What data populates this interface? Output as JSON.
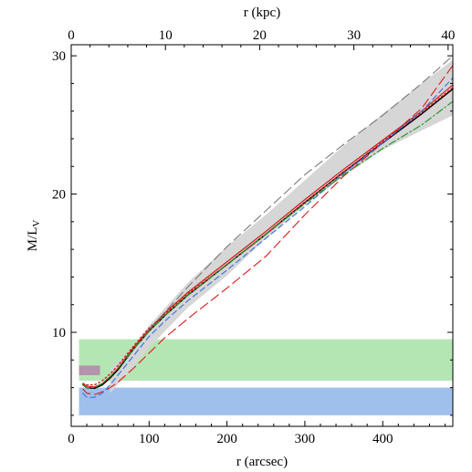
{
  "chart_data": {
    "type": "line",
    "xlabel": "r (arcsec)",
    "x2label": "r (kpc)",
    "ylabel_main": "M/L",
    "ylabel_sub": "V",
    "xlim": [
      0,
      490
    ],
    "x2lim": [
      0,
      40.5
    ],
    "ylim": [
      3.2,
      30.8
    ],
    "xticks": [
      0,
      100,
      200,
      300,
      400
    ],
    "x2ticks": [
      0,
      10,
      20,
      30,
      40
    ],
    "yticks": [
      10,
      20,
      30
    ],
    "grid": false,
    "colors": {
      "black": "#000000",
      "red": "#d91a1a",
      "blue": "#3a78e0",
      "green": "#2a9a2a",
      "gray": "#707070",
      "band": "#d6d6d6",
      "green_box": "#b4e6b4",
      "blue_box": "#a0c0ec",
      "mauve_box": "#b494aa"
    },
    "bands": [
      {
        "x": [
          10,
          490
        ],
        "y": [
          6.5,
          9.5
        ],
        "color": "green_box"
      },
      {
        "x": [
          10,
          490
        ],
        "y": [
          4.0,
          6.0
        ],
        "color": "blue_box"
      },
      {
        "x": [
          10,
          37
        ],
        "y": [
          6.9,
          7.6
        ],
        "color": "mauve_box"
      }
    ],
    "envelope": {
      "x": [
        50,
        75,
        100,
        150,
        200,
        250,
        300,
        350,
        400,
        450,
        490
      ],
      "lower": [
        5.6,
        7.2,
        8.9,
        11.8,
        14.1,
        16.8,
        19.2,
        21.3,
        23.2,
        24.6,
        25.7
      ],
      "upper": [
        7.3,
        8.7,
        10.5,
        13.6,
        16.2,
        18.5,
        21.0,
        23.5,
        25.8,
        28.0,
        29.7
      ]
    },
    "series": [
      {
        "color": "black",
        "dash": "solid",
        "width": 1.5,
        "x": [
          15,
          20,
          30,
          40,
          50,
          60,
          80,
          100,
          120,
          150,
          200,
          250,
          300,
          350,
          400,
          450,
          490
        ],
        "y": [
          6.2,
          6.0,
          5.95,
          6.2,
          6.7,
          7.3,
          8.8,
          10.1,
          11.2,
          12.7,
          14.9,
          17.1,
          19.4,
          21.6,
          23.7,
          25.8,
          27.6
        ]
      },
      {
        "color": "red",
        "dash": "solid",
        "width": 1.2,
        "x": [
          15,
          20,
          30,
          40,
          50,
          60,
          80,
          100,
          120,
          150,
          200,
          250,
          300,
          350,
          400,
          450,
          490
        ],
        "y": [
          6.3,
          6.1,
          6.05,
          6.3,
          6.8,
          7.4,
          8.9,
          10.2,
          11.4,
          12.9,
          15.1,
          17.3,
          19.6,
          21.8,
          23.9,
          26.0,
          27.9
        ]
      },
      {
        "color": "red",
        "dash": "dotted",
        "width": 1.4,
        "x": [
          15,
          20,
          30,
          40,
          50,
          60,
          80,
          100,
          120,
          150,
          200,
          250,
          300,
          350,
          400,
          450,
          490
        ],
        "y": [
          6.3,
          6.2,
          6.2,
          6.5,
          7.0,
          7.6,
          9.0,
          10.3,
          11.3,
          12.8,
          14.9,
          17.1,
          19.4,
          21.6,
          23.8,
          25.9,
          27.7
        ]
      },
      {
        "color": "red",
        "dash": "longdash",
        "width": 1.1,
        "x": [
          15,
          20,
          30,
          40,
          50,
          60,
          80,
          100,
          120,
          150,
          200,
          250,
          300,
          350,
          400,
          450,
          490
        ],
        "y": [
          5.9,
          5.6,
          5.5,
          5.7,
          6.0,
          6.4,
          7.4,
          8.5,
          9.6,
          11.0,
          13.2,
          15.5,
          18.5,
          21.3,
          23.7,
          26.2,
          29.3
        ]
      },
      {
        "color": "blue",
        "dash": "dashed",
        "width": 1.2,
        "x": [
          15,
          20,
          30,
          40,
          50,
          60,
          80,
          100,
          120,
          150,
          200,
          250,
          300,
          350,
          400,
          450,
          490
        ],
        "y": [
          5.6,
          5.3,
          5.3,
          5.6,
          6.2,
          6.9,
          8.3,
          9.7,
          10.8,
          12.3,
          14.5,
          16.8,
          19.1,
          21.5,
          23.7,
          26.0,
          28.4
        ]
      },
      {
        "color": "green",
        "dash": "dashdot",
        "width": 1.2,
        "x": [
          15,
          20,
          30,
          40,
          50,
          60,
          80,
          100,
          120,
          150,
          200,
          250,
          300,
          350,
          400,
          450,
          490
        ],
        "y": [
          6.2,
          6.0,
          6.0,
          6.3,
          6.8,
          7.4,
          8.8,
          10.1,
          11.2,
          12.7,
          14.9,
          17.1,
          19.3,
          21.4,
          23.3,
          25.0,
          26.7
        ]
      },
      {
        "color": "gray",
        "dash": "longdash",
        "width": 1.0,
        "x": [
          100,
          150,
          200,
          250,
          300,
          350,
          400,
          450,
          490
        ],
        "y": [
          10.2,
          13.3,
          16.2,
          18.8,
          21.4,
          23.6,
          25.7,
          28.0,
          30.0
        ]
      }
    ]
  }
}
